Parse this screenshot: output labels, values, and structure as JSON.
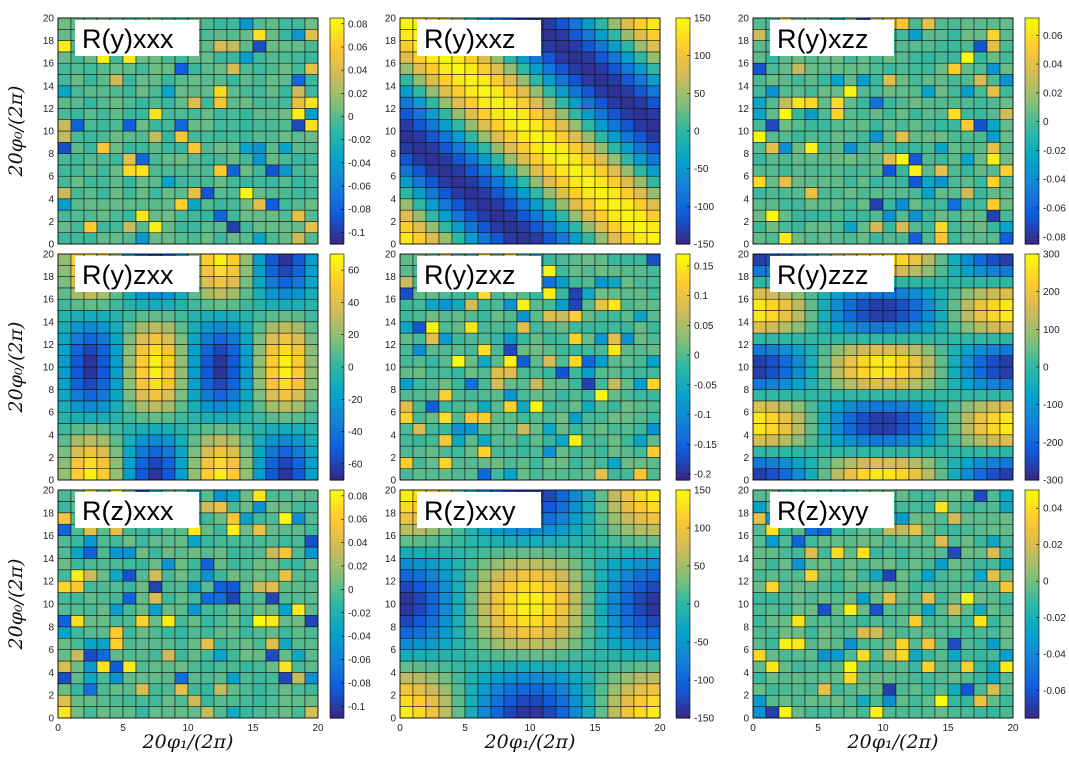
{
  "figure": {
    "ylabel": "20φ₀/(2π)",
    "xlabel": "20φ₁/(2π)",
    "colormap": [
      "#352a87",
      "#0f5cdd",
      "#1481d6",
      "#06a4ca",
      "#2eb7a4",
      "#87bf77",
      "#d1bb59",
      "#fec832",
      "#f9fb0e"
    ]
  },
  "chart_data": [
    {
      "type": "heatmap",
      "title": "R(y)xxx",
      "pattern": "noise",
      "xlim": [
        0,
        20
      ],
      "ylim": [
        0,
        20
      ],
      "grid_size": 20,
      "xticks": [
        "0",
        "5",
        "10",
        "15",
        "20"
      ],
      "yticks": [
        "0",
        "2",
        "4",
        "6",
        "8",
        "10",
        "12",
        "14",
        "16",
        "18",
        "20"
      ],
      "clim": [
        -0.11,
        0.085
      ],
      "colorbar_ticks": [
        "0.08",
        "0.06",
        "0.04",
        "0.02",
        "0",
        "-0.02",
        "-0.04",
        "-0.06",
        "-0.08",
        "-0.1"
      ]
    },
    {
      "type": "heatmap",
      "title": "R(y)xxz",
      "pattern": "diagonal",
      "xlim": [
        0,
        20
      ],
      "ylim": [
        0,
        20
      ],
      "grid_size": 20,
      "xticks": [
        "0",
        "5",
        "10",
        "15",
        "20"
      ],
      "yticks": [
        "0",
        "2",
        "4",
        "6",
        "8",
        "10",
        "12",
        "14",
        "16",
        "18",
        "20"
      ],
      "clim": [
        -150,
        150
      ],
      "colorbar_ticks": [
        "150",
        "100",
        "50",
        "0",
        "-50",
        "-100",
        "-150"
      ]
    },
    {
      "type": "heatmap",
      "title": "R(y)xzz",
      "pattern": "noise",
      "xlim": [
        0,
        20
      ],
      "ylim": [
        0,
        20
      ],
      "grid_size": 20,
      "xticks": [
        "0",
        "5",
        "10",
        "15",
        "20"
      ],
      "yticks": [
        "0",
        "2",
        "4",
        "6",
        "8",
        "10",
        "12",
        "14",
        "16",
        "18",
        "20"
      ],
      "clim": [
        -0.085,
        0.072
      ],
      "colorbar_ticks": [
        "0.06",
        "0.04",
        "0.02",
        "0",
        "-0.02",
        "-0.04",
        "-0.06",
        "-0.08"
      ]
    },
    {
      "type": "heatmap",
      "title": "R(y)zxx",
      "pattern": "checker",
      "xlim": [
        0,
        20
      ],
      "ylim": [
        0,
        20
      ],
      "grid_size": 20,
      "xticks": [
        "0",
        "5",
        "10",
        "15",
        "20"
      ],
      "yticks": [
        "0",
        "2",
        "4",
        "6",
        "8",
        "10",
        "12",
        "14",
        "16",
        "18",
        "20"
      ],
      "clim": [
        -70,
        70
      ],
      "colorbar_ticks": [
        "60",
        "40",
        "20",
        "0",
        "-20",
        "-40",
        "-60"
      ]
    },
    {
      "type": "heatmap",
      "title": "R(y)zxz",
      "pattern": "noise",
      "xlim": [
        0,
        20
      ],
      "ylim": [
        0,
        20
      ],
      "grid_size": 20,
      "xticks": [
        "0",
        "5",
        "10",
        "15",
        "20"
      ],
      "yticks": [
        "0",
        "2",
        "4",
        "6",
        "8",
        "10",
        "12",
        "14",
        "16",
        "18",
        "20"
      ],
      "clim": [
        -0.21,
        0.17
      ],
      "colorbar_ticks": [
        "0.15",
        "0.1",
        "0.05",
        "0",
        "-0.05",
        "-0.1",
        "-0.15",
        "-0.2"
      ]
    },
    {
      "type": "heatmap",
      "title": "R(y)zzz",
      "pattern": "bands",
      "xlim": [
        0,
        20
      ],
      "ylim": [
        0,
        20
      ],
      "grid_size": 20,
      "xticks": [
        "0",
        "5",
        "10",
        "15",
        "20"
      ],
      "yticks": [
        "0",
        "2",
        "4",
        "6",
        "8",
        "10",
        "12",
        "14",
        "16",
        "18",
        "20"
      ],
      "clim": [
        -300,
        300
      ],
      "colorbar_ticks": [
        "300",
        "200",
        "100",
        "0",
        "-100",
        "-200",
        "-300"
      ]
    },
    {
      "type": "heatmap",
      "title": "R(z)xxx",
      "pattern": "noise",
      "xlim": [
        0,
        20
      ],
      "ylim": [
        0,
        20
      ],
      "grid_size": 20,
      "xticks": [
        "0",
        "5",
        "10",
        "15",
        "20"
      ],
      "yticks": [
        "0",
        "2",
        "4",
        "6",
        "8",
        "10",
        "12",
        "14",
        "16",
        "18",
        "20"
      ],
      "clim": [
        -0.11,
        0.085
      ],
      "colorbar_ticks": [
        "0.08",
        "0.06",
        "0.04",
        "0.02",
        "0",
        "-0.02",
        "-0.04",
        "-0.06",
        "-0.08",
        "-0.1"
      ]
    },
    {
      "type": "heatmap",
      "title": "R(z)xxy",
      "pattern": "quad",
      "xlim": [
        0,
        20
      ],
      "ylim": [
        0,
        20
      ],
      "grid_size": 20,
      "xticks": [
        "0",
        "5",
        "10",
        "15",
        "20"
      ],
      "yticks": [
        "0",
        "2",
        "4",
        "6",
        "8",
        "10",
        "12",
        "14",
        "16",
        "18",
        "20"
      ],
      "clim": [
        -150,
        150
      ],
      "colorbar_ticks": [
        "150",
        "100",
        "50",
        "0",
        "-50",
        "-100",
        "-150"
      ]
    },
    {
      "type": "heatmap",
      "title": "R(z)xyy",
      "pattern": "noise",
      "xlim": [
        0,
        20
      ],
      "ylim": [
        0,
        20
      ],
      "grid_size": 20,
      "xticks": [
        "0",
        "5",
        "10",
        "15",
        "20"
      ],
      "yticks": [
        "0",
        "2",
        "4",
        "6",
        "8",
        "10",
        "12",
        "14",
        "16",
        "18",
        "20"
      ],
      "clim": [
        -0.075,
        0.05
      ],
      "colorbar_ticks": [
        "0.04",
        "0.02",
        "0",
        "-0.02",
        "-0.04",
        "-0.06"
      ]
    }
  ]
}
